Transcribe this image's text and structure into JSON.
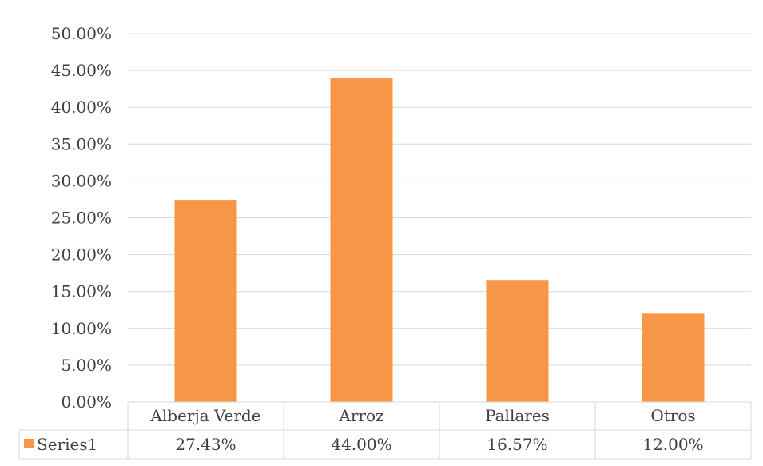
{
  "chart_data": {
    "type": "bar",
    "categories": [
      "Alberja Verde",
      "Arroz",
      "Pallares",
      "Otros"
    ],
    "series": [
      {
        "name": "Series1",
        "values": [
          27.43,
          44.0,
          16.57,
          12.0
        ],
        "color": "#f79646"
      }
    ],
    "value_labels": [
      "27.43%",
      "44.00%",
      "16.57%",
      "12.00%"
    ],
    "y_ticks": [
      "0.00%",
      "5.00%",
      "10.00%",
      "15.00%",
      "20.00%",
      "25.00%",
      "30.00%",
      "35.00%",
      "40.00%",
      "45.00%",
      "50.00%"
    ],
    "ylim": [
      0,
      50
    ],
    "grid": true,
    "legend": "data-table",
    "colors": {
      "bar": "#f79646",
      "grid": "#d9d9d9",
      "text": "#404040"
    }
  }
}
